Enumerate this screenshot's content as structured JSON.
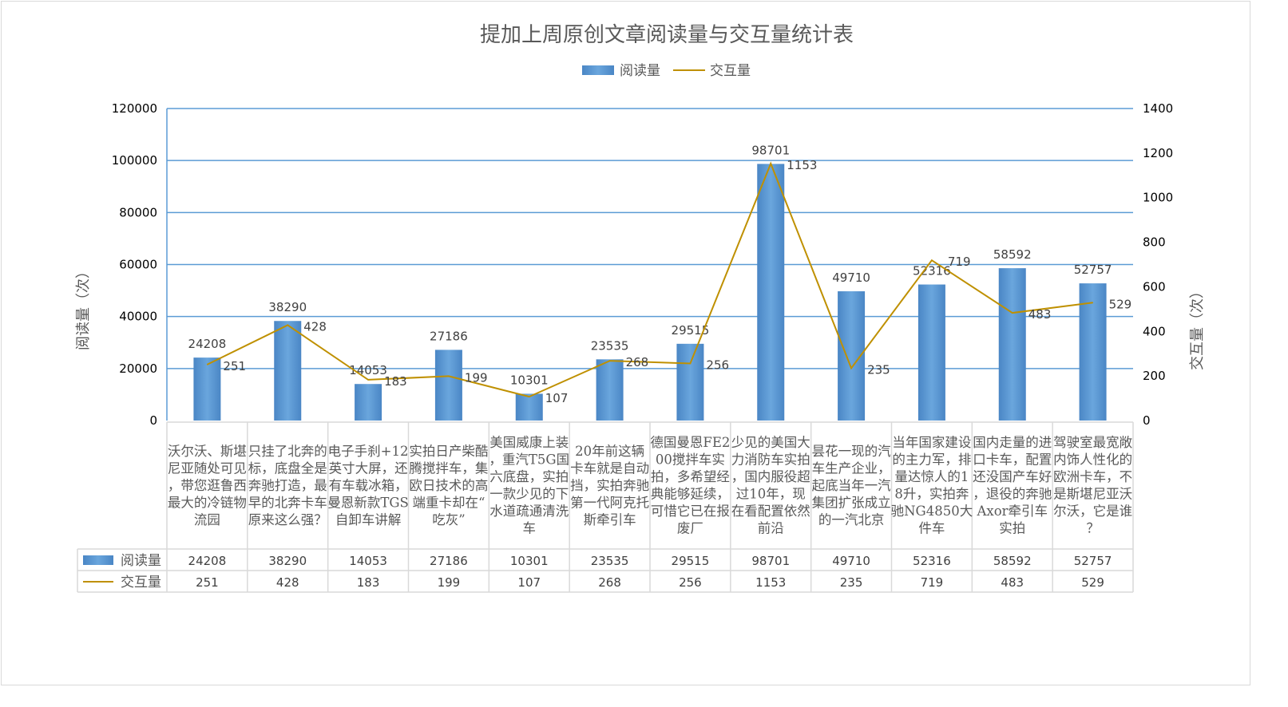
{
  "chart_data": {
    "type": "bar+line",
    "title": "提加上周原创文章阅读量与交互量统计表",
    "categories": [
      "沃尔沃、斯堪尼亚随处可见，带您逛鲁西最大的冷链物流园",
      "只挂了北奔的标，底盘全是奔驰打造，最早的北奔卡车原来这么强？",
      "电子手刹+12英寸大屏，还有车载冰箱，曼恩新款TGS自卸车讲解",
      "实拍日产柴酷腾搅拌车，集欧日技术的高端重卡却在“吃灰”",
      "美国威康上装，重汽T5G国六底盘，实拍一款少见的下水道疏通清洗车",
      "20年前这辆卡车就是自动挡，实拍奔驰第一代阿克托斯牵引车",
      "德国曼恩FE200搅拌车实拍，多希望经典能够延续，可惜它已在报废厂",
      "少见的美国大力消防车实拍，国内服役超过10年，现在看配置依然前沿",
      "昙花一现的汽车生产企业，起底当年一汽集团扩张成立的一汽北京",
      "当年国家建设的主力军，排量达惊人的18升，实拍奔驰NG4850大件车",
      "国内走量的进口卡车，配置还没国产车好，退役的奔驰Axor牵引车实拍",
      "驾驶室最宽敞内饰人性化的欧洲卡车，不是斯堪尼亚沃尔沃，它是谁？"
    ],
    "series": [
      {
        "name": "阅读量",
        "type": "bar",
        "axis": "left",
        "color": "#5b9bd5",
        "values": [
          24208,
          38290,
          14053,
          27186,
          10301,
          23535,
          29515,
          98701,
          49710,
          52316,
          58592,
          52757
        ]
      },
      {
        "name": "交互量",
        "type": "line",
        "axis": "right",
        "color": "#bf9000",
        "values": [
          251,
          428,
          183,
          199,
          107,
          268,
          256,
          1153,
          235,
          719,
          483,
          529
        ]
      }
    ],
    "ylabel": "阅读量（次）",
    "y2label": "交互量（次）",
    "ylim": [
      0,
      120000
    ],
    "y2lim": [
      0,
      1400
    ],
    "yticks": [
      "0",
      "20000",
      "40000",
      "60000",
      "80000",
      "100000",
      "120000"
    ],
    "y2ticks": [
      "0",
      "200",
      "400",
      "600",
      "800",
      "1000",
      "1200",
      "1400"
    ],
    "grid": true,
    "legend": "top",
    "data_table": true
  }
}
